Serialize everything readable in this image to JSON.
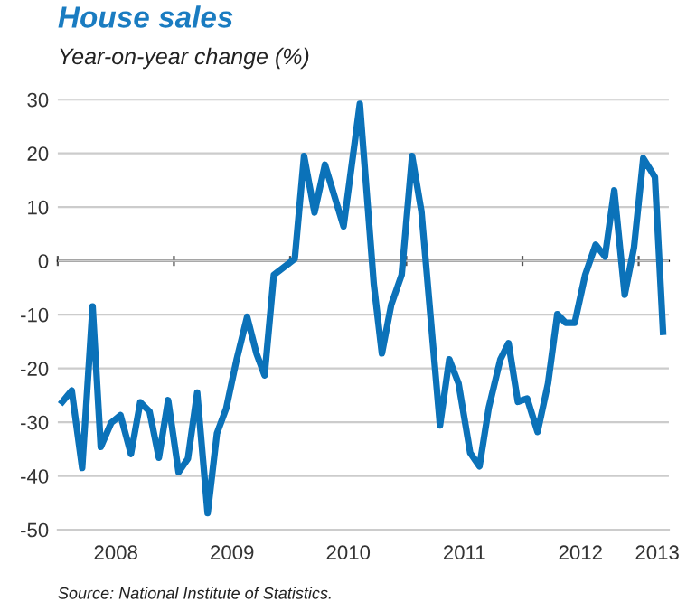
{
  "chart_data": {
    "type": "line",
    "title": "House sales",
    "subtitle": "Year-on-year change (%)",
    "annotations": [
      "Source: National Institute of Statistics."
    ],
    "x": [
      2008.04,
      2008.12,
      2008.21,
      2008.3,
      2008.37,
      2008.46,
      2008.54,
      2008.63,
      2008.71,
      2008.79,
      2008.87,
      2008.95,
      2009.04,
      2009.12,
      2009.2,
      2009.29,
      2009.37,
      2009.45,
      2009.54,
      2009.63,
      2009.71,
      2009.78,
      2009.86,
      2010.04,
      2010.12,
      2010.21,
      2010.3,
      2010.46,
      2010.6,
      2010.72,
      2010.79,
      2010.87,
      2010.96,
      2011.05,
      2011.13,
      2011.29,
      2011.37,
      2011.45,
      2011.55,
      2011.63,
      2011.71,
      2011.81,
      2011.88,
      2011.96,
      2012.04,
      2012.13,
      2012.22,
      2012.3,
      2012.37,
      2012.45,
      2012.54,
      2012.63,
      2012.71,
      2012.79,
      2012.88,
      2012.96,
      2013.04,
      2013.14,
      2013.21
    ],
    "series": [
      {
        "color": "#0b72b9",
        "values": [
          -26.2,
          -24.1,
          -38.5,
          -8.5,
          -34.6,
          -30.1,
          -28.7,
          -35.9,
          -26.3,
          -28.0,
          -36.6,
          -25.9,
          -39.3,
          -36.8,
          -24.5,
          -46.9,
          -32.1,
          -27.4,
          -18.3,
          -10.4,
          -17.2,
          -21.3,
          -2.6,
          0.4,
          19.5,
          9.0,
          17.9,
          6.4,
          29.2,
          -4.3,
          -17.2,
          -8.2,
          -2.6,
          19.5,
          9.2,
          -30.6,
          -18.3,
          -22.8,
          -35.7,
          -38.2,
          -27.3,
          -18.3,
          -15.3,
          -26.2,
          -25.6,
          -31.8,
          -22.8,
          -9.9,
          -11.5,
          -11.5,
          -2.6,
          3.0,
          0.8,
          13.1,
          -6.3,
          2.5,
          19.1,
          15.6,
          -13.2
        ]
      }
    ],
    "xlim": [
      2008,
      2013.26
    ],
    "xticks": [
      {
        "value": 2008,
        "label": null
      },
      {
        "value": 2008.5,
        "label": "2008"
      },
      {
        "value": 2009,
        "label": null
      },
      {
        "value": 2009.5,
        "label": "2009"
      },
      {
        "value": 2010,
        "label": null
      },
      {
        "value": 2010.5,
        "label": "2010"
      },
      {
        "value": 2011,
        "label": null
      },
      {
        "value": 2011.5,
        "label": "2011"
      },
      {
        "value": 2012,
        "label": null
      },
      {
        "value": 2012.5,
        "label": "2012"
      },
      {
        "value": 2013,
        "label": null
      },
      {
        "value": 2013.16,
        "label": "2013"
      }
    ],
    "ylim": [
      -50,
      30
    ],
    "yticks": [
      -50,
      -40,
      -30,
      -20,
      -10,
      0,
      10,
      20,
      30
    ],
    "grid": "y",
    "legend": false,
    "marker": "none",
    "line_style": "solid"
  }
}
